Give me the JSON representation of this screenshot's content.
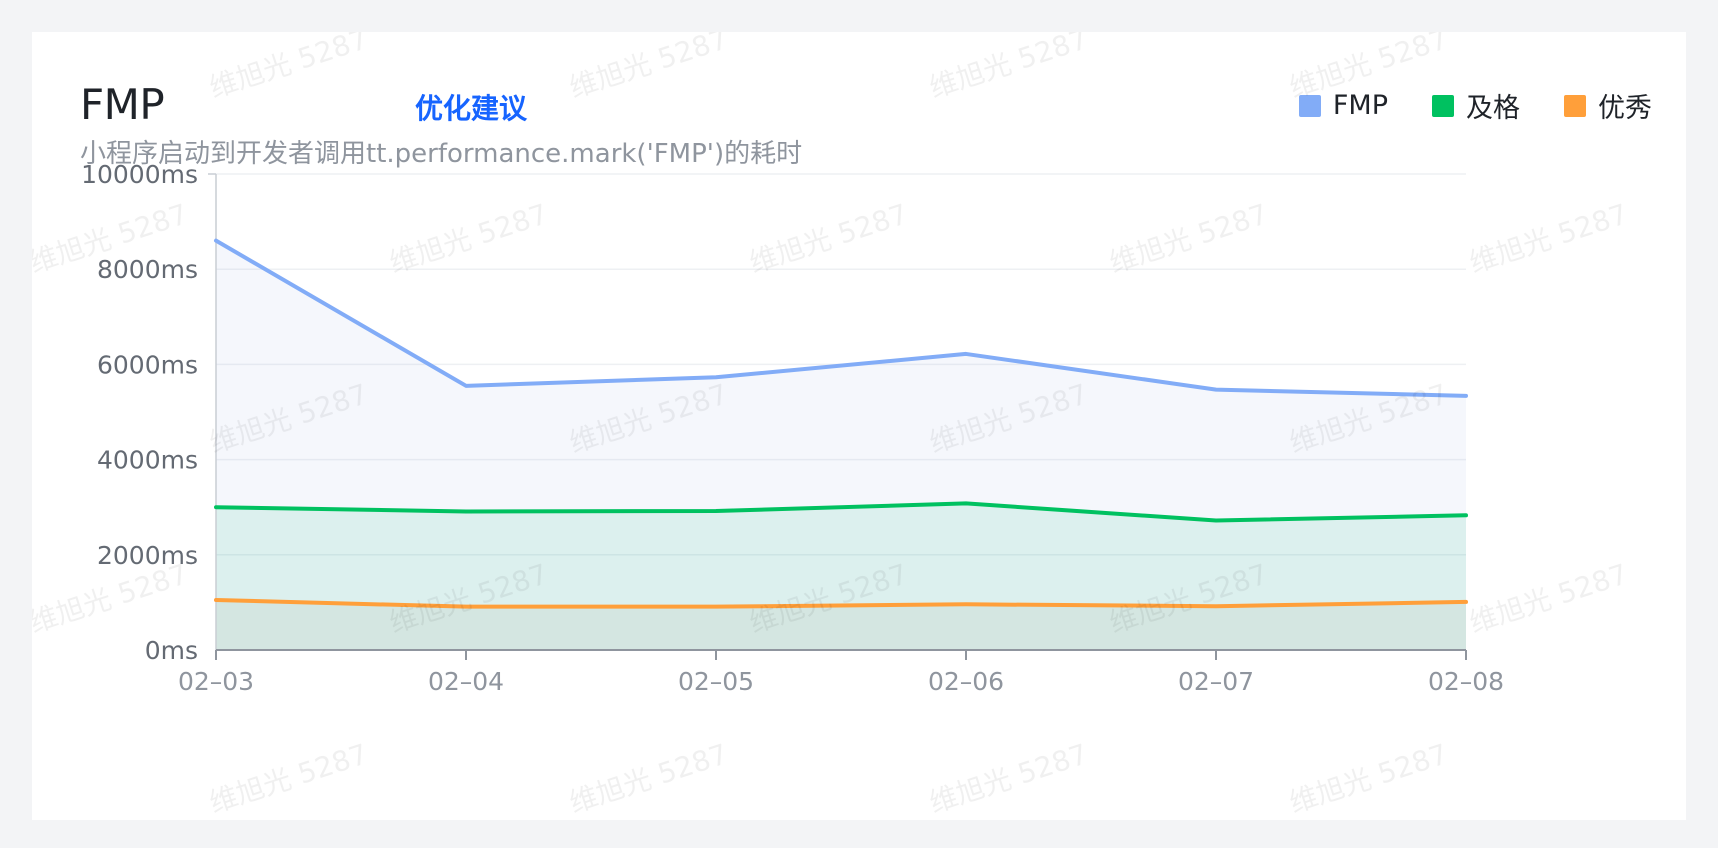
{
  "header": {
    "title": "FMP",
    "advice_link": "优化建议",
    "subtitle": "小程序启动到开发者调用tt.performance.mark('FMP')的耗时"
  },
  "watermark": "维旭光 5287",
  "colors": {
    "background": "#f3f4f6",
    "card": "#ffffff",
    "link": "#1664ff"
  },
  "chart_data": {
    "type": "area",
    "title": "FMP",
    "subtitle": "小程序启动到开发者调用tt.performance.mark('FMP')的耗时",
    "x": [
      "02-03",
      "02-04",
      "02-05",
      "02-06",
      "02-07",
      "02-08"
    ],
    "x_tick_labels": [
      "02–03",
      "02–04",
      "02–05",
      "02–06",
      "02–07",
      "02–08"
    ],
    "y_ticks": [
      0,
      2000,
      4000,
      6000,
      8000,
      10000
    ],
    "y_tick_labels": [
      "0ms",
      "2000ms",
      "4000ms",
      "6000ms",
      "8000ms",
      "10000ms"
    ],
    "ylim": [
      0,
      10000
    ],
    "y_unit": "ms",
    "grid": true,
    "legend_position": "top-right",
    "series": [
      {
        "name": "FMP",
        "color": "#82acf7",
        "fill": "rgba(130,150,220,0.08)",
        "values": [
          8600,
          5550,
          5730,
          6220,
          5470,
          5340
        ]
      },
      {
        "name": "及格",
        "color": "#00c160",
        "fill": "rgba(0,190,120,0.10)",
        "values": [
          3000,
          2910,
          2920,
          3080,
          2720,
          2830
        ]
      },
      {
        "name": "优秀",
        "color": "#ff9f3a",
        "fill": "rgba(120,100,60,0.07)",
        "values": [
          1050,
          910,
          910,
          960,
          920,
          1010
        ]
      }
    ]
  }
}
